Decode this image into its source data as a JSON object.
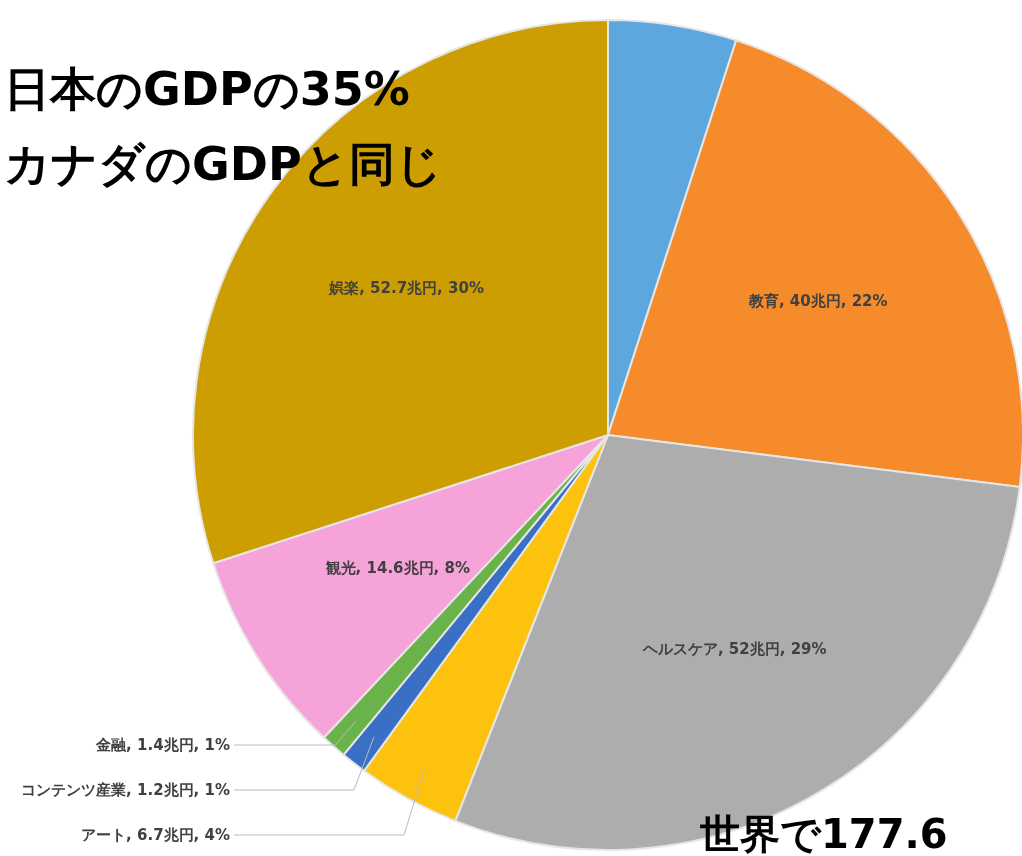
{
  "chart_data": {
    "type": "pie",
    "title": "日本のGDPの35%",
    "subtitle": "カナダのGDPと同じ",
    "categories": [
      null,
      "教育",
      "ヘルスケア",
      "アート",
      "コンテンツ産業",
      "金融",
      "観光",
      "娯楽"
    ],
    "values": [
      5,
      22,
      29,
      4,
      1,
      1,
      8,
      30
    ],
    "value_labels": [
      null,
      "40兆円, 22%",
      "52兆円, 29%",
      "6.7兆円, 4%",
      "1.2兆円, 1%",
      "1.4兆円, 1%",
      "14.6兆円, 8%",
      "52.7兆円, 30%"
    ],
    "colors": [
      "#5ca8de",
      "#f68b2c",
      "#adadad",
      "#fdc20e",
      "#3a6fc6",
      "#6ab34a",
      "#f6a3d9",
      "#cc9e02"
    ],
    "annotations": [
      "世界で177.6"
    ]
  }
}
